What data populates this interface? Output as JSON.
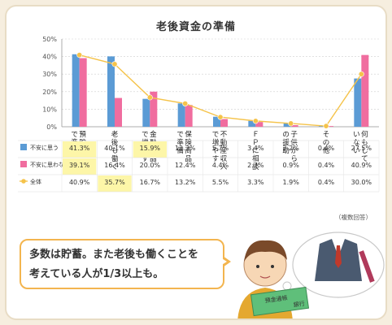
{
  "chart_data": {
    "type": "bar",
    "title": "老後資金の準備",
    "ylim": [
      0,
      50
    ],
    "yticks": [
      "0%",
      "10%",
      "20%",
      "30%",
      "40%",
      "50%"
    ],
    "categories": [
      "預貯金で準備",
      "老後も働く",
      "金融商品で増やす",
      "保険商品で準備",
      "不動産収入で増やす",
      "ＦＰに相談",
      "子供からの援助",
      "その他",
      "何もしていない"
    ],
    "series": [
      {
        "name": "不安に思う",
        "color": "#5b9bd5",
        "values": [
          41.3,
          40.1,
          15.9,
          13.3,
          5.7,
          3.4,
          2.2,
          0.4,
          27.5
        ],
        "labels": [
          "41.3%",
          "40.1%",
          "15.9%",
          "13.3%",
          "5.7%",
          "3.4%",
          "2.2%",
          "0.4%",
          "27.5%"
        ]
      },
      {
        "name": "不安に思わない",
        "color": "#f06d9f",
        "values": [
          39.1,
          16.4,
          20.0,
          12.4,
          4.4,
          2.7,
          0.9,
          0.4,
          40.9
        ],
        "labels": [
          "39.1%",
          "16.4%",
          "20.0%",
          "12.4%",
          "4.4%",
          "2.7%",
          "0.9%",
          "0.4%",
          "40.9%"
        ]
      },
      {
        "name": "全体",
        "color": "#f5c34a",
        "type": "line",
        "values": [
          40.9,
          35.7,
          16.7,
          13.2,
          5.5,
          3.3,
          1.9,
          0.4,
          30.0
        ],
        "labels": [
          "40.9%",
          "35.7%",
          "16.7%",
          "13.2%",
          "5.5%",
          "3.3%",
          "1.9%",
          "0.4%",
          "30.0%"
        ]
      }
    ],
    "highlight": {
      "color": "#fdf6a8",
      "cells": [
        [
          0,
          0
        ],
        [
          0,
          1
        ],
        [
          1,
          2
        ],
        [
          2,
          0
        ]
      ]
    },
    "grid": true
  },
  "note": "（複数回答）",
  "speech": {
    "line1": "多数は貯蓄。また老後も働くことを",
    "line2": "考えている人が1/3以上も。"
  },
  "illustration": {
    "bankbook_label": "預金通帳",
    "bankbook_sub": "銀行"
  }
}
